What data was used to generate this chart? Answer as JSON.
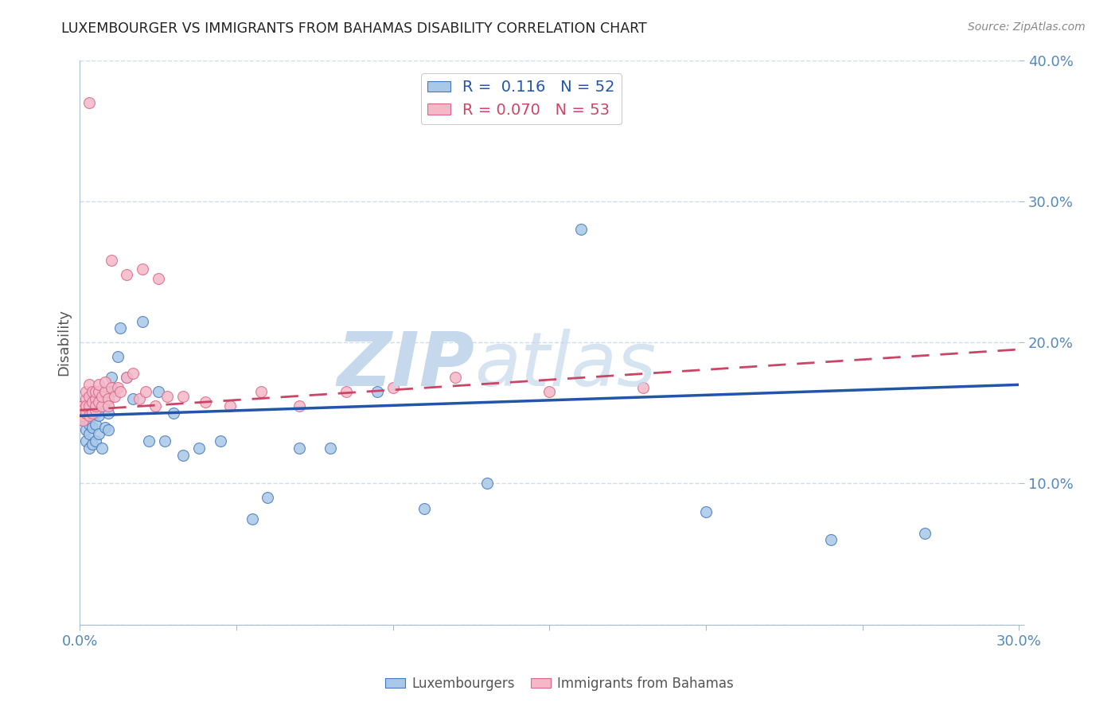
{
  "title": "LUXEMBOURGER VS IMMIGRANTS FROM BAHAMAS DISABILITY CORRELATION CHART",
  "source_text": "Source: ZipAtlas.com",
  "ylabel": "Disability",
  "xlim": [
    0.0,
    0.3
  ],
  "ylim": [
    0.0,
    0.4
  ],
  "xticks": [
    0.0,
    0.05,
    0.1,
    0.15,
    0.2,
    0.25,
    0.3
  ],
  "yticks": [
    0.0,
    0.1,
    0.2,
    0.3,
    0.4
  ],
  "blue_R": 0.116,
  "blue_N": 52,
  "pink_R": 0.07,
  "pink_N": 53,
  "blue_color": "#A8C8E8",
  "pink_color": "#F4B8C8",
  "blue_edge_color": "#4477BB",
  "pink_edge_color": "#DD6688",
  "blue_line_color": "#2255AA",
  "pink_line_color": "#CC4466",
  "watermark_zip": "ZIP",
  "watermark_atlas": "atlas",
  "watermark_color_zip": "#C8D8E8",
  "watermark_color_atlas": "#C8D8E8",
  "tick_label_color": "#5588BB",
  "blue_x": [
    0.001,
    0.001,
    0.001,
    0.002,
    0.002,
    0.002,
    0.002,
    0.003,
    0.003,
    0.003,
    0.003,
    0.004,
    0.004,
    0.004,
    0.004,
    0.005,
    0.005,
    0.005,
    0.005,
    0.006,
    0.006,
    0.007,
    0.007,
    0.008,
    0.008,
    0.009,
    0.009,
    0.01,
    0.01,
    0.012,
    0.013,
    0.015,
    0.017,
    0.02,
    0.022,
    0.025,
    0.027,
    0.03,
    0.033,
    0.038,
    0.045,
    0.055,
    0.06,
    0.07,
    0.08,
    0.095,
    0.11,
    0.13,
    0.16,
    0.2,
    0.24,
    0.27
  ],
  "blue_y": [
    0.145,
    0.15,
    0.155,
    0.13,
    0.138,
    0.145,
    0.152,
    0.125,
    0.135,
    0.142,
    0.155,
    0.128,
    0.14,
    0.148,
    0.158,
    0.13,
    0.142,
    0.15,
    0.16,
    0.135,
    0.148,
    0.125,
    0.155,
    0.14,
    0.158,
    0.138,
    0.15,
    0.165,
    0.175,
    0.19,
    0.21,
    0.175,
    0.16,
    0.215,
    0.13,
    0.165,
    0.13,
    0.15,
    0.12,
    0.125,
    0.13,
    0.075,
    0.09,
    0.125,
    0.125,
    0.165,
    0.082,
    0.1,
    0.28,
    0.08,
    0.06,
    0.065
  ],
  "pink_x": [
    0.001,
    0.001,
    0.001,
    0.001,
    0.002,
    0.002,
    0.002,
    0.002,
    0.003,
    0.003,
    0.003,
    0.003,
    0.004,
    0.004,
    0.004,
    0.005,
    0.005,
    0.005,
    0.005,
    0.006,
    0.006,
    0.006,
    0.007,
    0.007,
    0.008,
    0.008,
    0.009,
    0.009,
    0.01,
    0.011,
    0.012,
    0.013,
    0.015,
    0.017,
    0.019,
    0.021,
    0.024,
    0.028,
    0.033,
    0.04,
    0.048,
    0.058,
    0.07,
    0.085,
    0.1,
    0.12,
    0.15,
    0.18,
    0.01,
    0.015,
    0.02,
    0.025,
    0.003
  ],
  "pink_y": [
    0.155,
    0.148,
    0.152,
    0.145,
    0.16,
    0.15,
    0.155,
    0.165,
    0.148,
    0.155,
    0.162,
    0.17,
    0.15,
    0.158,
    0.165,
    0.152,
    0.16,
    0.155,
    0.165,
    0.158,
    0.165,
    0.17,
    0.155,
    0.162,
    0.165,
    0.172,
    0.16,
    0.155,
    0.168,
    0.162,
    0.168,
    0.165,
    0.175,
    0.178,
    0.16,
    0.165,
    0.155,
    0.162,
    0.162,
    0.158,
    0.155,
    0.165,
    0.155,
    0.165,
    0.168,
    0.175,
    0.165,
    0.168,
    0.258,
    0.248,
    0.252,
    0.245,
    0.37
  ],
  "pink_outlier_x": [
    0.003
  ],
  "pink_outlier_y": [
    0.37
  ]
}
